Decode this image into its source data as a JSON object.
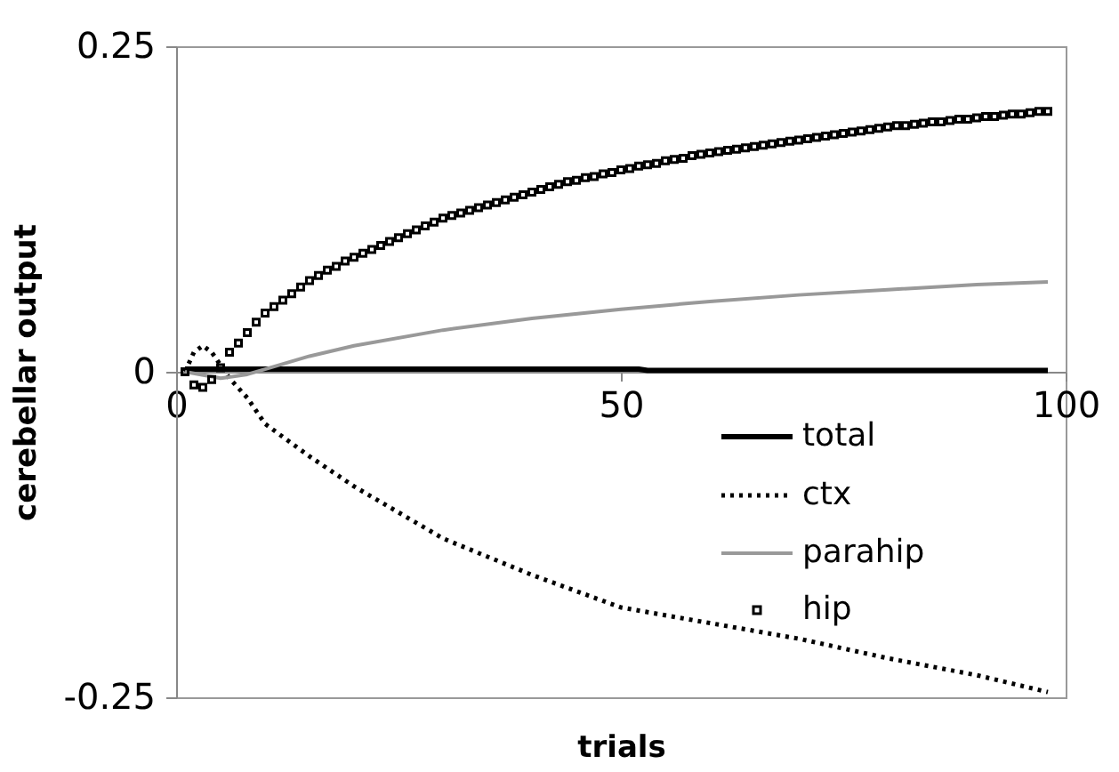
{
  "chart_data": {
    "type": "line",
    "xlabel": "trials",
    "ylabel": "cerebellar output",
    "xlim": [
      0,
      100
    ],
    "xticks": [
      0,
      50,
      100
    ],
    "ylim": [
      -0.25,
      0.25
    ],
    "yticks": [
      -0.25,
      0,
      0.25
    ],
    "legend": "right",
    "grid": false,
    "series": [
      {
        "name": "total",
        "color": "#000000",
        "line_style": "solid",
        "x": [
          1,
          52,
          53,
          98
        ],
        "values": [
          0.002,
          0.002,
          0.001,
          0.001
        ]
      },
      {
        "name": "ctx",
        "color": "#000000",
        "line_style": "dotted",
        "x": [
          1,
          2,
          3,
          4,
          5,
          6,
          8,
          10,
          15,
          20,
          30,
          40,
          50,
          60,
          70,
          80,
          90,
          98
        ],
        "values": [
          0,
          0.015,
          0.02,
          0.015,
          0.005,
          -0.005,
          -0.02,
          -0.04,
          -0.065,
          -0.088,
          -0.128,
          -0.156,
          -0.181,
          -0.193,
          -0.205,
          -0.22,
          -0.233,
          -0.246
        ]
      },
      {
        "name": "parahip",
        "color": "#999999",
        "line_style": "solid",
        "x": [
          1,
          5,
          8,
          10,
          15,
          20,
          30,
          40,
          50,
          60,
          70,
          80,
          90,
          98
        ],
        "values": [
          0,
          -0.005,
          -0.002,
          0.002,
          0.012,
          0.02,
          0.032,
          0.041,
          0.048,
          0.054,
          0.059,
          0.063,
          0.067,
          0.069
        ]
      },
      {
        "name": "hip",
        "color": "#000000",
        "type": "scatter",
        "marker": "square",
        "x": [
          1,
          2,
          3,
          4,
          5,
          6,
          7,
          8,
          9,
          10,
          11,
          12,
          13,
          14,
          15,
          16,
          17,
          18,
          19,
          20,
          21,
          22,
          23,
          24,
          25,
          26,
          27,
          28,
          29,
          30,
          31,
          32,
          33,
          34,
          35,
          36,
          37,
          38,
          39,
          40,
          41,
          42,
          43,
          44,
          45,
          46,
          47,
          48,
          49,
          50,
          51,
          52,
          53,
          54,
          55,
          56,
          57,
          58,
          59,
          60,
          61,
          62,
          63,
          64,
          65,
          66,
          67,
          68,
          69,
          70,
          71,
          72,
          73,
          74,
          75,
          76,
          77,
          78,
          79,
          80,
          81,
          82,
          83,
          84,
          85,
          86,
          87,
          88,
          89,
          90,
          91,
          92,
          93,
          94,
          95,
          96,
          97,
          98
        ],
        "values": [
          0,
          -0.01,
          -0.012,
          -0.006,
          0.003,
          0.015,
          0.022,
          0.03,
          0.038,
          0.045,
          0.05,
          0.055,
          0.06,
          0.065,
          0.07,
          0.074,
          0.078,
          0.081,
          0.085,
          0.088,
          0.091,
          0.094,
          0.097,
          0.1,
          0.103,
          0.106,
          0.109,
          0.112,
          0.115,
          0.118,
          0.12,
          0.122,
          0.124,
          0.126,
          0.128,
          0.13,
          0.132,
          0.134,
          0.136,
          0.138,
          0.14,
          0.142,
          0.144,
          0.146,
          0.147,
          0.149,
          0.15,
          0.152,
          0.153,
          0.155,
          0.156,
          0.158,
          0.159,
          0.16,
          0.162,
          0.163,
          0.164,
          0.166,
          0.167,
          0.168,
          0.169,
          0.17,
          0.171,
          0.172,
          0.173,
          0.174,
          0.175,
          0.176,
          0.177,
          0.178,
          0.179,
          0.18,
          0.181,
          0.182,
          0.183,
          0.184,
          0.185,
          0.186,
          0.187,
          0.188,
          0.189,
          0.189,
          0.19,
          0.191,
          0.192,
          0.192,
          0.193,
          0.194,
          0.194,
          0.195,
          0.196,
          0.196,
          0.197,
          0.198,
          0.198,
          0.199,
          0.2,
          0.2
        ]
      }
    ]
  }
}
